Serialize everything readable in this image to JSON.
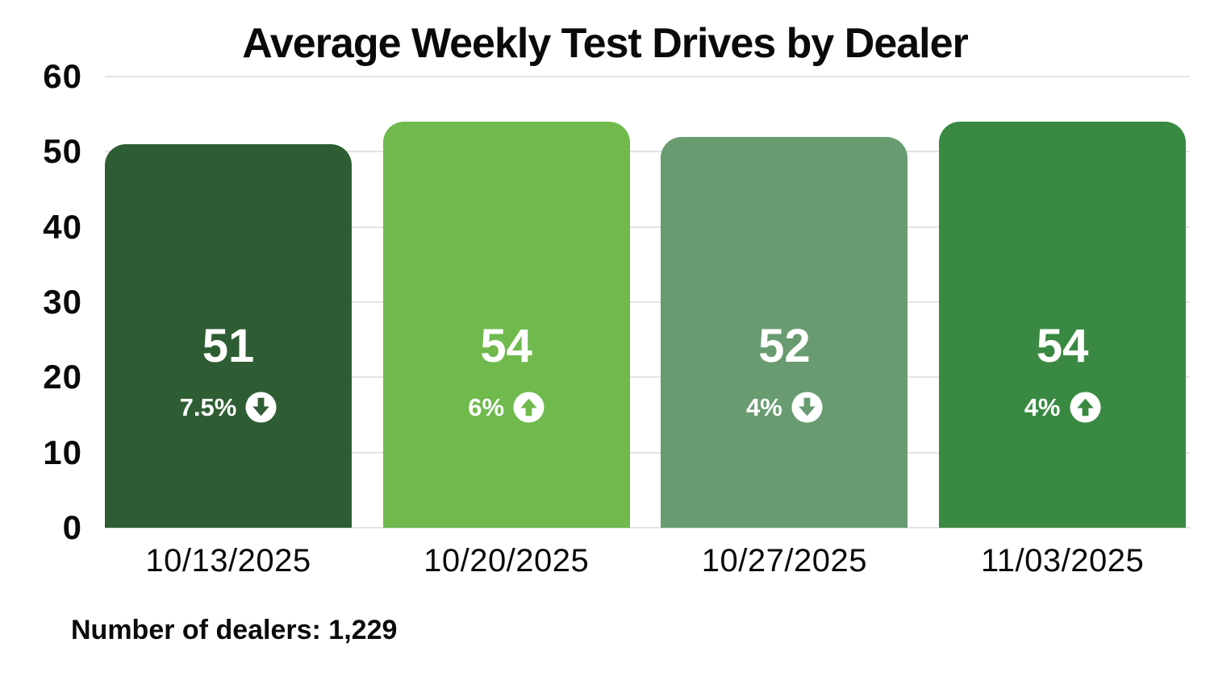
{
  "title": "Average Weekly Test Drives by Dealer",
  "footnote": "Number of dealers: 1,229",
  "colors": {
    "background": "#ffffff",
    "gridline": "#e2e3e2",
    "text": "#0a0a0a",
    "bar_label_text": "#ffffff"
  },
  "chart_data": {
    "type": "bar",
    "title": "Average Weekly Test Drives by Dealer",
    "xlabel": "",
    "ylabel": "",
    "categories": [
      "10/13/2025",
      "10/20/2025",
      "10/27/2025",
      "11/03/2025"
    ],
    "values": [
      51,
      54,
      52,
      54
    ],
    "bar_labels": [
      "51",
      "54",
      "52",
      "54"
    ],
    "change_labels": [
      "7.5%",
      "6%",
      "4%",
      "4%"
    ],
    "change_directions": [
      "down",
      "up",
      "down",
      "up"
    ],
    "bar_colors": [
      "#2f5d33",
      "#6fb94d",
      "#699b70",
      "#3a8943"
    ],
    "ylim": [
      0,
      60
    ],
    "yticks": [
      60,
      50,
      40,
      30,
      20,
      10,
      0
    ],
    "grid": true,
    "legend_position": "none",
    "annotation": "Number of dealers: 1,229"
  }
}
